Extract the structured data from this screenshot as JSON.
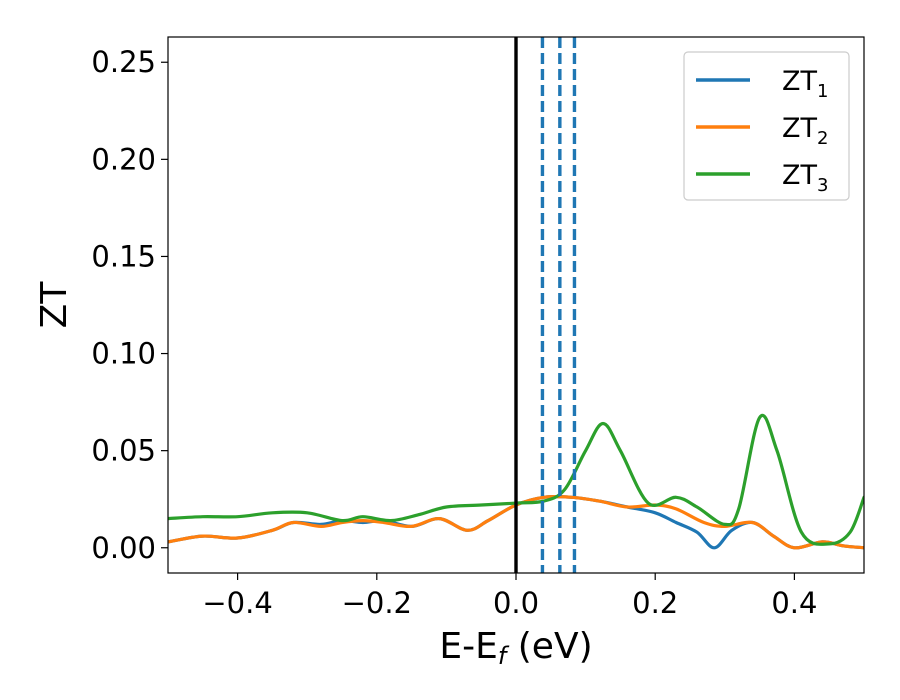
{
  "chart_data": {
    "type": "line",
    "xlabel": {
      "main": "E-E",
      "sub": "f",
      "unit": " (eV)"
    },
    "ylabel": "ZT",
    "xlim": [
      -0.5,
      0.5
    ],
    "ylim": [
      -0.013,
      0.263
    ],
    "x_ticks": [
      -0.4,
      -0.2,
      0.0,
      0.2,
      0.4
    ],
    "x_tick_labels": [
      "−0.4",
      "−0.2",
      "0.0",
      "0.2",
      "0.4"
    ],
    "y_ticks": [
      0.0,
      0.05,
      0.1,
      0.15,
      0.2,
      0.25
    ],
    "y_tick_labels": [
      "0.00",
      "0.05",
      "0.10",
      "0.15",
      "0.20",
      "0.25"
    ],
    "grid": false,
    "legend_position": "top-right",
    "reference_lines": [
      {
        "x": 0.0,
        "style": "solid",
        "color": "#000000"
      },
      {
        "x": 0.038,
        "style": "dashed",
        "color": "#1f77b4"
      },
      {
        "x": 0.063,
        "style": "dashed",
        "color": "#1f77b4"
      },
      {
        "x": 0.084,
        "style": "dashed",
        "color": "#1f77b4"
      }
    ],
    "series": [
      {
        "name": "ZT",
        "name_sub": "1",
        "color": "#1f77b4",
        "points": [
          [
            -0.5,
            0.003
          ],
          [
            -0.45,
            0.006
          ],
          [
            -0.4,
            0.005
          ],
          [
            -0.35,
            0.009
          ],
          [
            -0.32,
            0.013
          ],
          [
            -0.28,
            0.012
          ],
          [
            -0.25,
            0.014
          ],
          [
            -0.22,
            0.013
          ],
          [
            -0.19,
            0.014
          ],
          [
            -0.15,
            0.011
          ],
          [
            -0.11,
            0.015
          ],
          [
            -0.07,
            0.009
          ],
          [
            -0.04,
            0.014
          ],
          [
            0.0,
            0.022
          ],
          [
            0.04,
            0.026
          ],
          [
            0.08,
            0.026
          ],
          [
            0.12,
            0.024
          ],
          [
            0.16,
            0.021
          ],
          [
            0.2,
            0.018
          ],
          [
            0.23,
            0.013
          ],
          [
            0.26,
            0.008
          ],
          [
            0.285,
            0.0
          ],
          [
            0.31,
            0.009
          ],
          [
            0.34,
            0.013
          ],
          [
            0.37,
            0.006
          ],
          [
            0.4,
            0.0
          ],
          [
            0.44,
            0.003
          ],
          [
            0.47,
            0.001
          ],
          [
            0.5,
            0.0
          ]
        ]
      },
      {
        "name": "ZT",
        "name_sub": "2",
        "color": "#ff7f0e",
        "points": [
          [
            -0.5,
            0.003
          ],
          [
            -0.45,
            0.006
          ],
          [
            -0.4,
            0.005
          ],
          [
            -0.35,
            0.009
          ],
          [
            -0.32,
            0.013
          ],
          [
            -0.28,
            0.011
          ],
          [
            -0.25,
            0.013
          ],
          [
            -0.22,
            0.014
          ],
          [
            -0.19,
            0.013
          ],
          [
            -0.15,
            0.011
          ],
          [
            -0.11,
            0.015
          ],
          [
            -0.07,
            0.009
          ],
          [
            -0.04,
            0.014
          ],
          [
            0.0,
            0.022
          ],
          [
            0.04,
            0.026
          ],
          [
            0.08,
            0.026
          ],
          [
            0.12,
            0.024
          ],
          [
            0.16,
            0.021
          ],
          [
            0.2,
            0.022
          ],
          [
            0.23,
            0.02
          ],
          [
            0.27,
            0.013
          ],
          [
            0.3,
            0.011
          ],
          [
            0.34,
            0.013
          ],
          [
            0.37,
            0.006
          ],
          [
            0.4,
            0.0
          ],
          [
            0.44,
            0.003
          ],
          [
            0.47,
            0.001
          ],
          [
            0.5,
            0.0
          ]
        ]
      },
      {
        "name": "ZT",
        "name_sub": "3",
        "color": "#2ca02c",
        "points": [
          [
            -0.5,
            0.015
          ],
          [
            -0.45,
            0.016
          ],
          [
            -0.4,
            0.016
          ],
          [
            -0.35,
            0.018
          ],
          [
            -0.3,
            0.018
          ],
          [
            -0.25,
            0.014
          ],
          [
            -0.22,
            0.016
          ],
          [
            -0.18,
            0.014
          ],
          [
            -0.14,
            0.017
          ],
          [
            -0.1,
            0.021
          ],
          [
            -0.05,
            0.022
          ],
          [
            0.0,
            0.023
          ],
          [
            0.04,
            0.024
          ],
          [
            0.07,
            0.03
          ],
          [
            0.1,
            0.05
          ],
          [
            0.125,
            0.064
          ],
          [
            0.15,
            0.05
          ],
          [
            0.19,
            0.023
          ],
          [
            0.23,
            0.026
          ],
          [
            0.26,
            0.021
          ],
          [
            0.3,
            0.012
          ],
          [
            0.32,
            0.02
          ],
          [
            0.35,
            0.067
          ],
          [
            0.375,
            0.05
          ],
          [
            0.41,
            0.008
          ],
          [
            0.45,
            0.002
          ],
          [
            0.48,
            0.008
          ],
          [
            0.5,
            0.026
          ]
        ]
      }
    ]
  }
}
